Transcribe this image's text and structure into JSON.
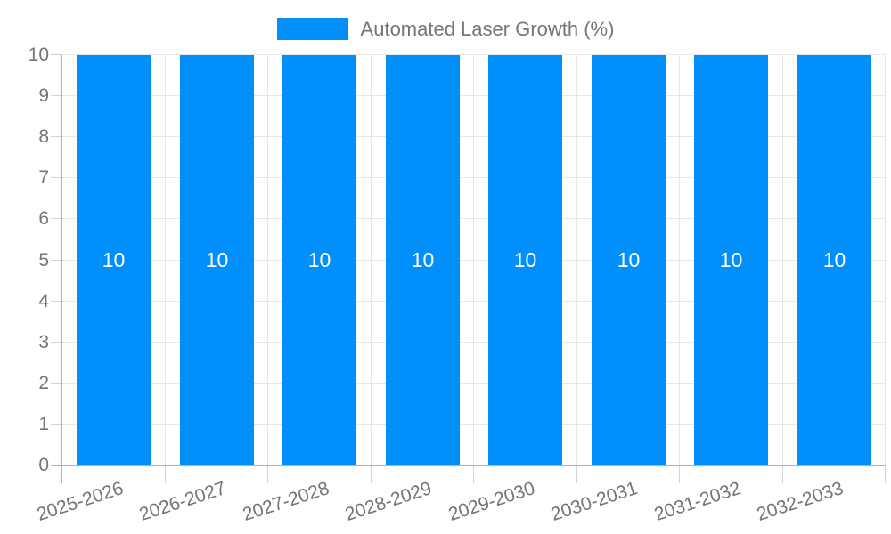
{
  "chart_data": {
    "type": "bar",
    "title": "",
    "legend": {
      "label": "Automated Laser Growth (%)",
      "position": "top"
    },
    "categories": [
      "2025-2026",
      "2026-2027",
      "2027-2028",
      "2028-2029",
      "2029-2030",
      "2030-2031",
      "2031-2032",
      "2032-2033"
    ],
    "series": [
      {
        "name": "Automated Laser Growth (%)",
        "values": [
          10,
          10,
          10,
          10,
          10,
          10,
          10,
          10
        ]
      }
    ],
    "data_labels_shown": true,
    "xlabel": "",
    "ylabel": "",
    "ylim": [
      0,
      10
    ],
    "y_ticks": [
      0,
      1,
      2,
      3,
      4,
      5,
      6,
      7,
      8,
      9,
      10
    ],
    "grid": true,
    "colors": {
      "bar": "#008FFB",
      "bar_label": "#FFFFFF",
      "gridline": "#E7E7E7",
      "axis_line": "#B2B2B2",
      "tick": "#D4D4D4",
      "axis_label": "#757575",
      "legend_text": "#757575",
      "background": "#FFFFFF"
    }
  }
}
